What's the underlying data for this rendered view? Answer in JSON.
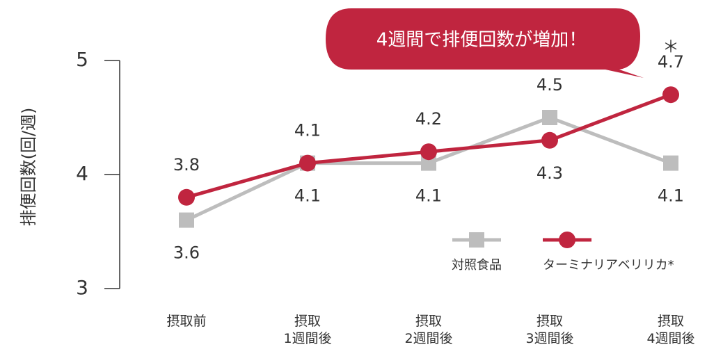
{
  "chart_data": {
    "type": "line",
    "y_label": "排便回数(回/週)",
    "annotation": "4週間で排便回数が増加！",
    "significance_mark": "＊",
    "categories": [
      "摂取前",
      "摂取\n1週間後",
      "摂取\n2週間後",
      "摂取\n3週間後",
      "摂取\n4週間後"
    ],
    "series": [
      {
        "name": "対照食品",
        "color": "#bdbdbd",
        "marker": "square",
        "values": [
          3.6,
          4.1,
          4.1,
          4.5,
          4.1
        ]
      },
      {
        "name": "ターミナリアベリリカ*",
        "color": "#c0253f",
        "marker": "circle",
        "values": [
          3.8,
          4.1,
          4.2,
          4.3,
          4.7
        ]
      }
    ],
    "ylim": [
      3,
      5
    ],
    "yticks": [
      3,
      4,
      5
    ]
  }
}
